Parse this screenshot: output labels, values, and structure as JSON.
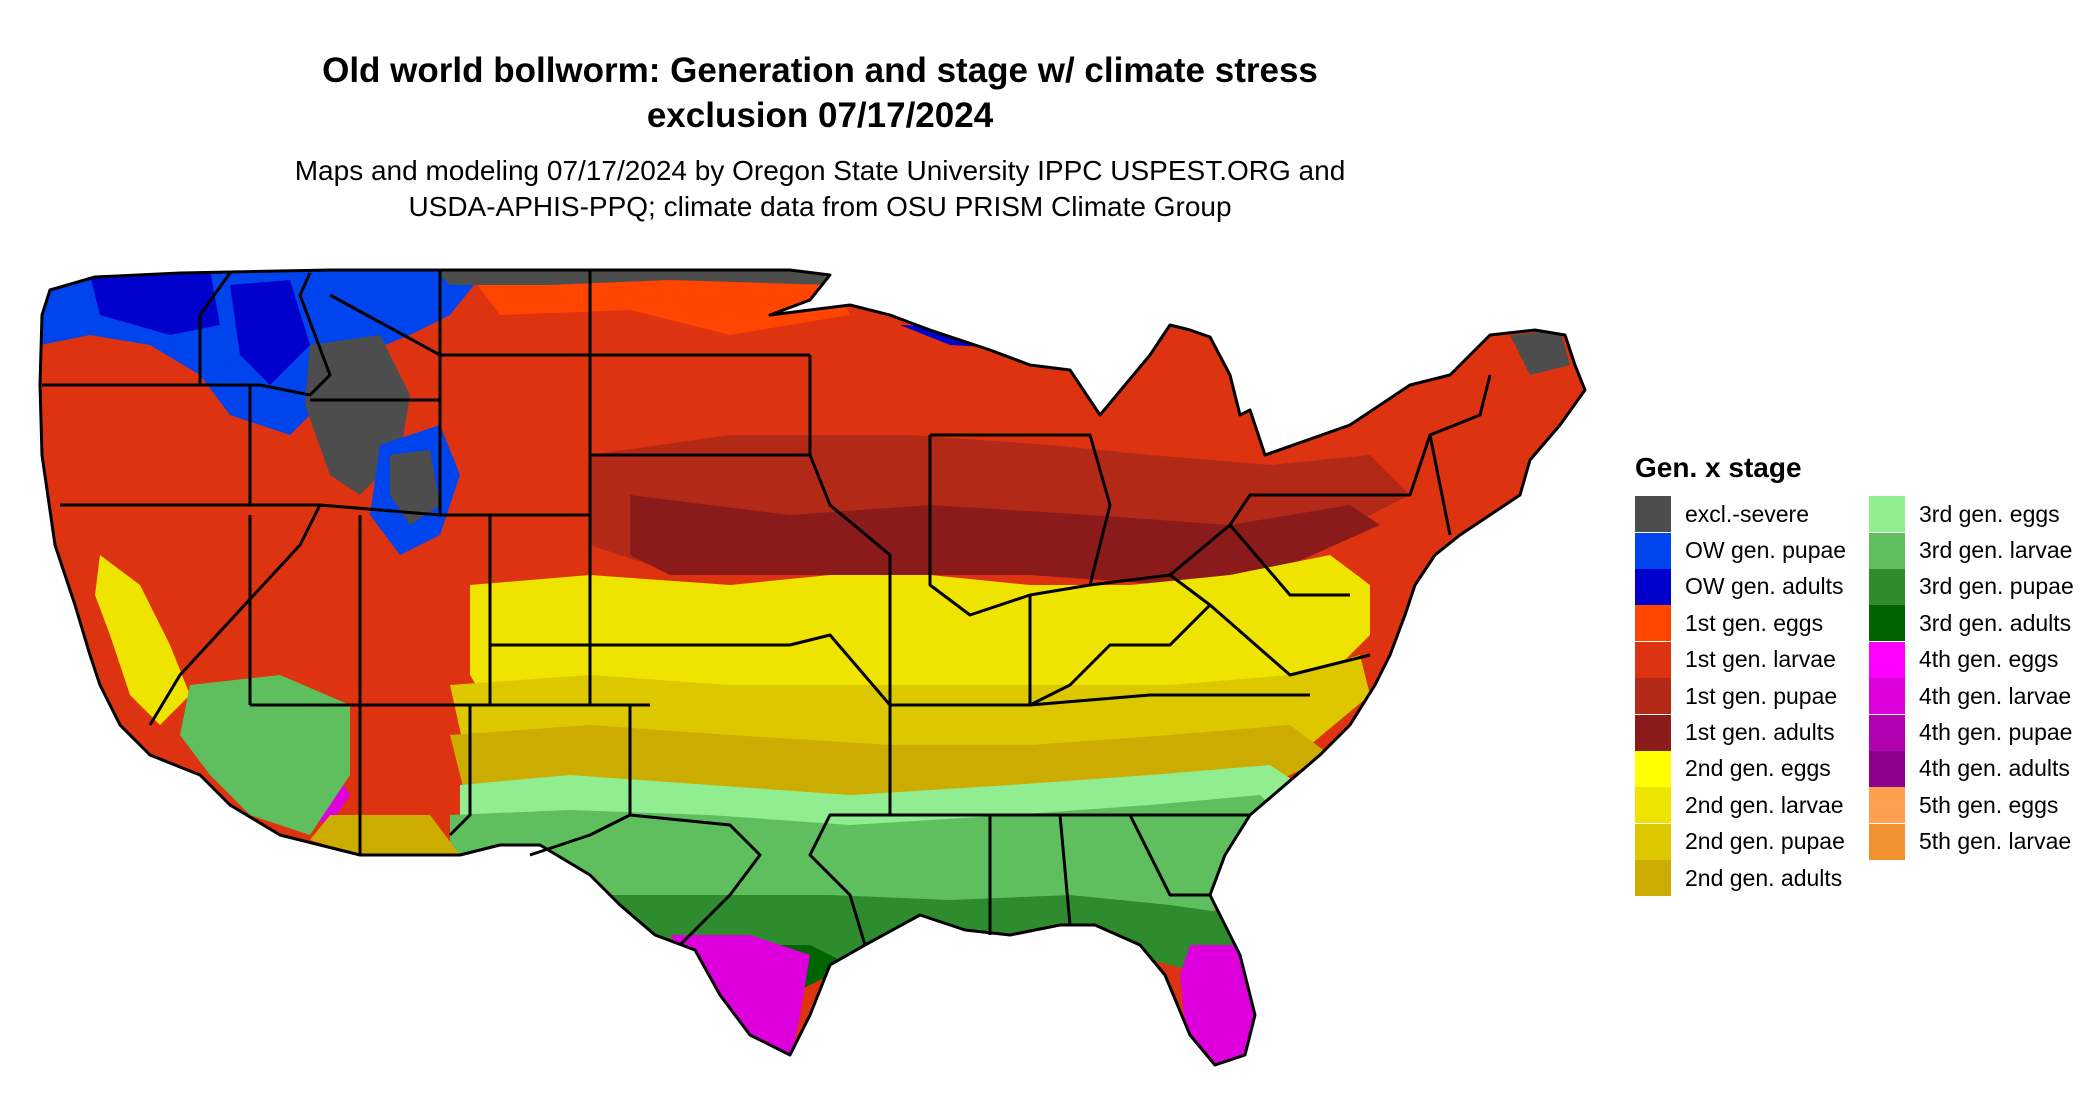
{
  "title": {
    "line1": "Old world bollworm: Generation and stage w/ climate stress",
    "line2": "exclusion 07/17/2024"
  },
  "subtitle": {
    "line1": "Maps and modeling 07/17/2024 by Oregon State University IPPC USPEST.ORG and",
    "line2": "USDA-APHIS-PPQ; climate data from OSU PRISM Climate Group"
  },
  "legend": {
    "title": "Gen. x stage",
    "col1": [
      {
        "label": "excl.-severe",
        "color": "#4d4d4d"
      },
      {
        "label": "OW gen. pupae",
        "color": "#0044ee"
      },
      {
        "label": "OW gen. adults",
        "color": "#0000cc"
      },
      {
        "label": "1st gen. eggs",
        "color": "#ff4500"
      },
      {
        "label": "1st gen. larvae",
        "color": "#dd3311"
      },
      {
        "label": "1st gen. pupae",
        "color": "#b22a17"
      },
      {
        "label": "1st gen. adults",
        "color": "#8b1a1a"
      },
      {
        "label": "2nd gen. eggs",
        "color": "#ffff00"
      },
      {
        "label": "2nd gen. larvae",
        "color": "#eee400"
      },
      {
        "label": "2nd gen. pupae",
        "color": "#ddc800"
      },
      {
        "label": "2nd gen. adults",
        "color": "#ccac00"
      }
    ],
    "col2": [
      {
        "label": "3rd gen. eggs",
        "color": "#90ee90"
      },
      {
        "label": "3rd gen. larvae",
        "color": "#5fbf5f"
      },
      {
        "label": "3rd gen. pupae",
        "color": "#2e8b2e"
      },
      {
        "label": "3rd gen. adults",
        "color": "#006400"
      },
      {
        "label": "4th gen. eggs",
        "color": "#ff00ff"
      },
      {
        "label": "4th gen. larvae",
        "color": "#dd00dd"
      },
      {
        "label": "4th gen. pupae",
        "color": "#b000b0"
      },
      {
        "label": "4th gen. adults",
        "color": "#8b008b"
      },
      {
        "label": "5th gen. eggs",
        "color": "#ffa050"
      },
      {
        "label": "5th gen. larvae",
        "color": "#f09030"
      }
    ]
  }
}
